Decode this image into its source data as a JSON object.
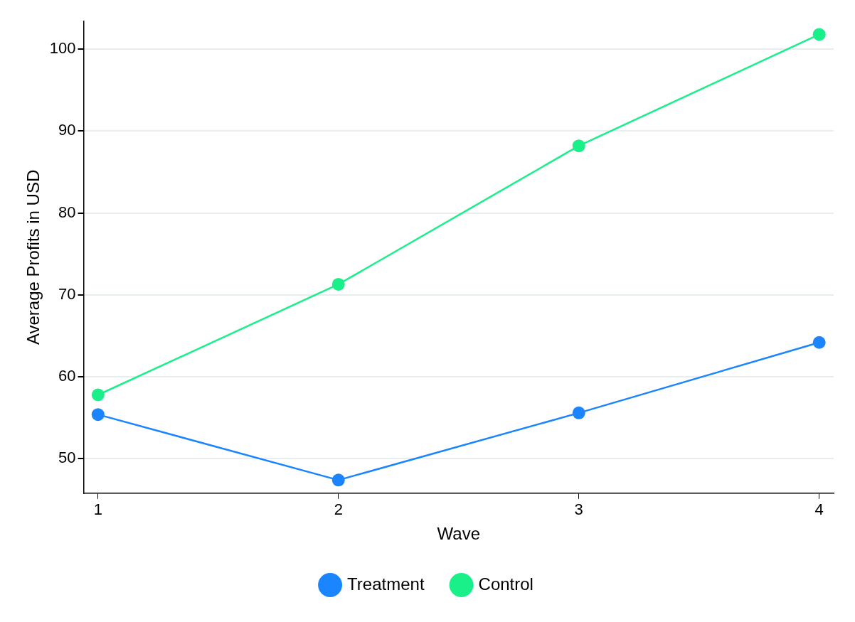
{
  "chart_data": {
    "type": "line",
    "xlabel": "Wave",
    "ylabel": "Average Profits in USD",
    "x": [
      1,
      2,
      3,
      4
    ],
    "series": [
      {
        "name": "Treatment",
        "color": "#1a85ff",
        "values": [
          55.4,
          47.4,
          55.6,
          64.2
        ]
      },
      {
        "name": "Control",
        "color": "#1af08a",
        "values": [
          57.8,
          71.3,
          88.2,
          101.8
        ]
      }
    ],
    "xlim": [
      0.94,
      4.06
    ],
    "xticks": [
      1,
      2,
      3,
      4
    ],
    "ylim": [
      45.8,
      103.4
    ],
    "yticks": [
      50,
      60,
      70,
      80,
      90,
      100
    ],
    "grid": "y",
    "legend": "bottom",
    "marker": "circle",
    "line_style": "solid"
  }
}
